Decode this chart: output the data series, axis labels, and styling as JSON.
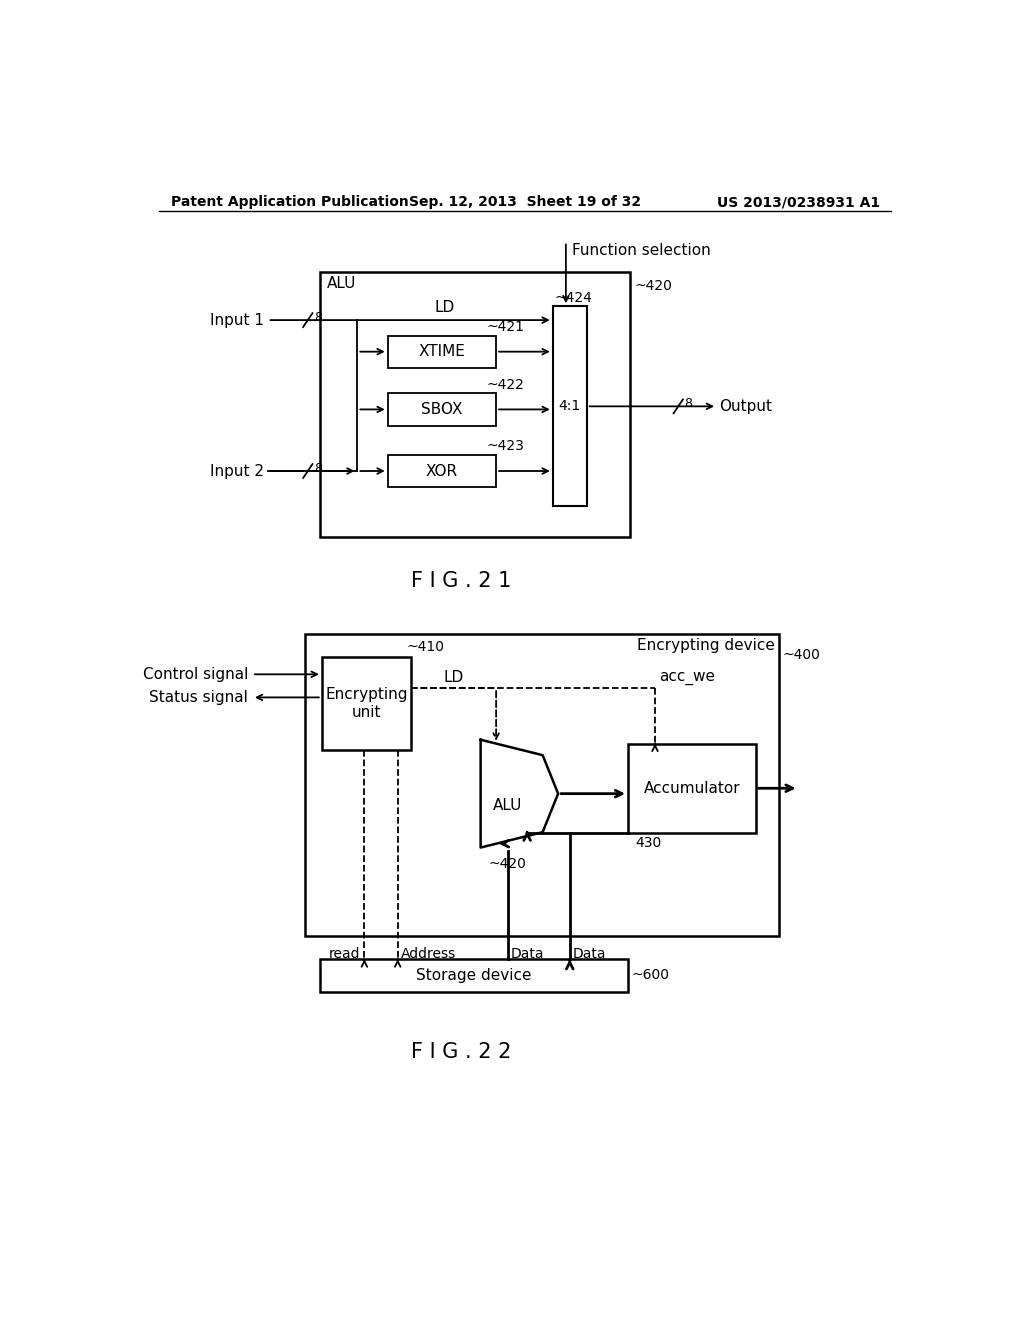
{
  "bg_color": "#ffffff",
  "text_color": "#000000",
  "header_left": "Patent Application Publication",
  "header_mid": "Sep. 12, 2013  Sheet 19 of 32",
  "header_right": "US 2013/0238931 A1",
  "fig21_label": "F I G . 2 1",
  "fig22_label": "F I G . 2 2",
  "fig21_title": "Function selection",
  "fig21_alu_label": "ALU",
  "fig21_420": "~420",
  "fig21_424": "~424",
  "fig21_421": "~421",
  "fig21_422": "~422",
  "fig21_423": "~423",
  "fig21_ld": "LD",
  "fig21_input1": "Input 1",
  "fig21_input2": "Input 2",
  "fig21_output": "Output",
  "fig21_8a": "8",
  "fig21_8b": "8",
  "fig21_8c": "8",
  "fig21_4to1": "4:1",
  "fig21_xtime": "XTIME",
  "fig21_sbox": "SBOX",
  "fig21_xor": "XOR",
  "fig22_enc_device": "Encrypting device",
  "fig22_400": "~400",
  "fig22_410": "~410",
  "fig22_420": "~420",
  "fig22_430": "430",
  "fig22_600": "~600",
  "fig22_enc_unit": "Encrypting\nunit",
  "fig22_alu": "ALU",
  "fig22_accum": "Accumulator",
  "fig22_storage": "Storage device",
  "fig22_ctrl": "Control signal",
  "fig22_status": "Status signal",
  "fig22_ld": "LD",
  "fig22_acc_we": "acc_we",
  "fig22_read": "read",
  "fig22_address": "Address",
  "fig22_data1": "Data",
  "fig22_data2": "Data"
}
